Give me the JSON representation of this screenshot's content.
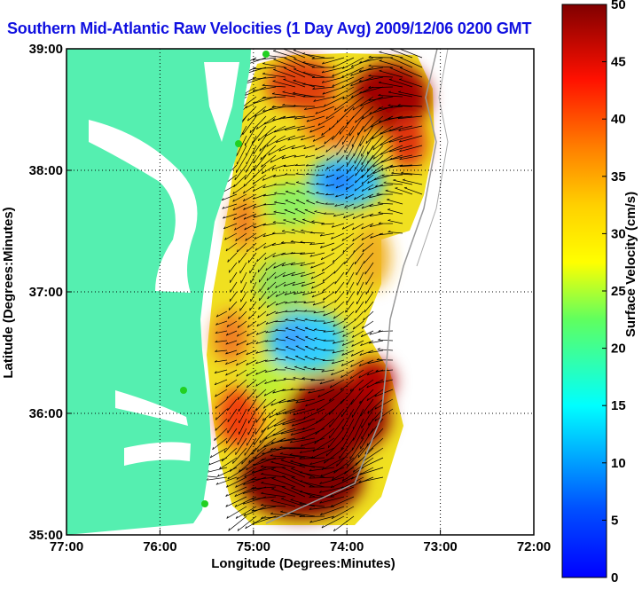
{
  "title": "Southern Mid-Atlantic Raw Velocities (1 Day Avg) 2009/12/06 0200 GMT",
  "chart_data": {
    "type": "heatmap",
    "subtype": "surface current vector map",
    "title": "Southern Mid-Atlantic Raw Velocities (1 Day Avg) 2009/12/06 0200 GMT",
    "xlabel": "Longitude (Degrees:Minutes)",
    "ylabel": "Latitude (Degrees:Minutes)",
    "x_ticks": [
      "77:00",
      "76:00",
      "75:00",
      "74:00",
      "73:00",
      "72:00"
    ],
    "y_ticks": [
      "39:00",
      "38:00",
      "37:00",
      "36:00",
      "35:00"
    ],
    "xlim": [
      -77,
      -72
    ],
    "ylim": [
      35,
      39
    ],
    "grid": true,
    "colorbar": {
      "label": "Surface Velocity (cm/s)",
      "range": [
        0,
        50
      ],
      "ticks": [
        "50",
        "45",
        "40",
        "35",
        "30",
        "25",
        "20",
        "15",
        "10",
        "5",
        "0"
      ],
      "colormap": "jet"
    },
    "speed_features": [
      {
        "lon": -74.2,
        "lat": 37.9,
        "speed": 8
      },
      {
        "lon": -74.5,
        "lat": 36.7,
        "speed": 12
      },
      {
        "lon": -74.2,
        "lat": 35.6,
        "speed": 50
      },
      {
        "lon": -73.6,
        "lat": 38.5,
        "speed": 48
      },
      {
        "lon": -74.7,
        "lat": 38.6,
        "speed": 45
      },
      {
        "lon": -74.2,
        "lat": 37.3,
        "speed": 24
      }
    ]
  },
  "colors": {
    "title": "#1010e0",
    "land": "#55efb0",
    "stations": "#22d022",
    "bathymetry": "#999999"
  }
}
